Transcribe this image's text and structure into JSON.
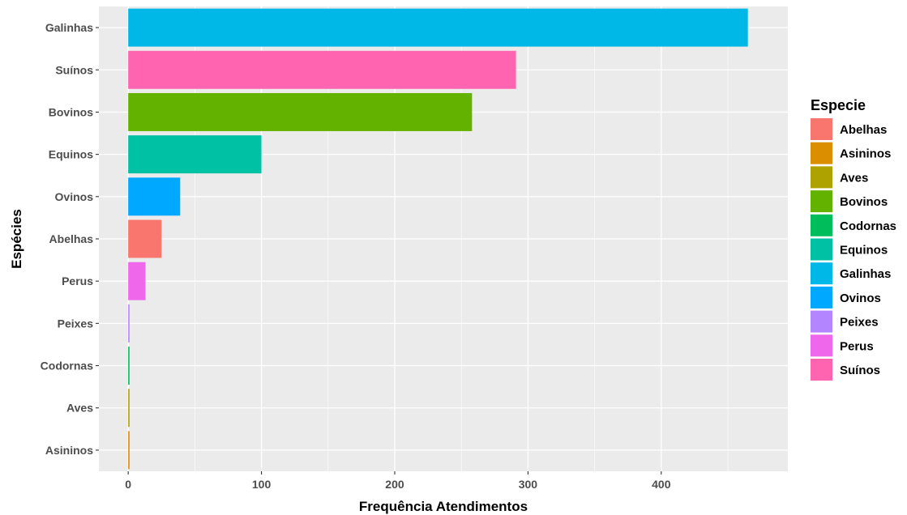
{
  "chart_data": {
    "type": "bar",
    "orientation": "horizontal",
    "categories": [
      "Galinhas",
      "Suínos",
      "Bovinos",
      "Equinos",
      "Ovinos",
      "Abelhas",
      "Perus",
      "Peixes",
      "Codornas",
      "Aves",
      "Asininos"
    ],
    "values": [
      465,
      291,
      258,
      100,
      39,
      25,
      13,
      1,
      1,
      1,
      1
    ],
    "colors": [
      "#00B8E7",
      "#FF64B0",
      "#64B200",
      "#00C1A3",
      "#00A9FF",
      "#F8766D",
      "#EF67EB",
      "#B385FF",
      "#00BD5C",
      "#AEA200",
      "#DB8E00"
    ],
    "xlabel": "Frequência Atendimentos",
    "ylabel": "Espécies",
    "xlim": [
      -22,
      495
    ],
    "xticks": [
      0,
      100,
      200,
      300,
      400
    ],
    "grid": true,
    "background": "#EBEBEB",
    "legend": {
      "title": "Especie",
      "placement": "right",
      "items": [
        {
          "label": "Abelhas",
          "color": "#F8766D"
        },
        {
          "label": "Asininos",
          "color": "#DB8E00"
        },
        {
          "label": "Aves",
          "color": "#AEA200"
        },
        {
          "label": "Bovinos",
          "color": "#64B200"
        },
        {
          "label": "Codornas",
          "color": "#00BD5C"
        },
        {
          "label": "Equinos",
          "color": "#00C1A3"
        },
        {
          "label": "Galinhas",
          "color": "#00B8E7"
        },
        {
          "label": "Ovinos",
          "color": "#00A9FF"
        },
        {
          "label": "Peixes",
          "color": "#B385FF"
        },
        {
          "label": "Perus",
          "color": "#EF67EB"
        },
        {
          "label": "Suínos",
          "color": "#FF64B0"
        }
      ]
    }
  }
}
